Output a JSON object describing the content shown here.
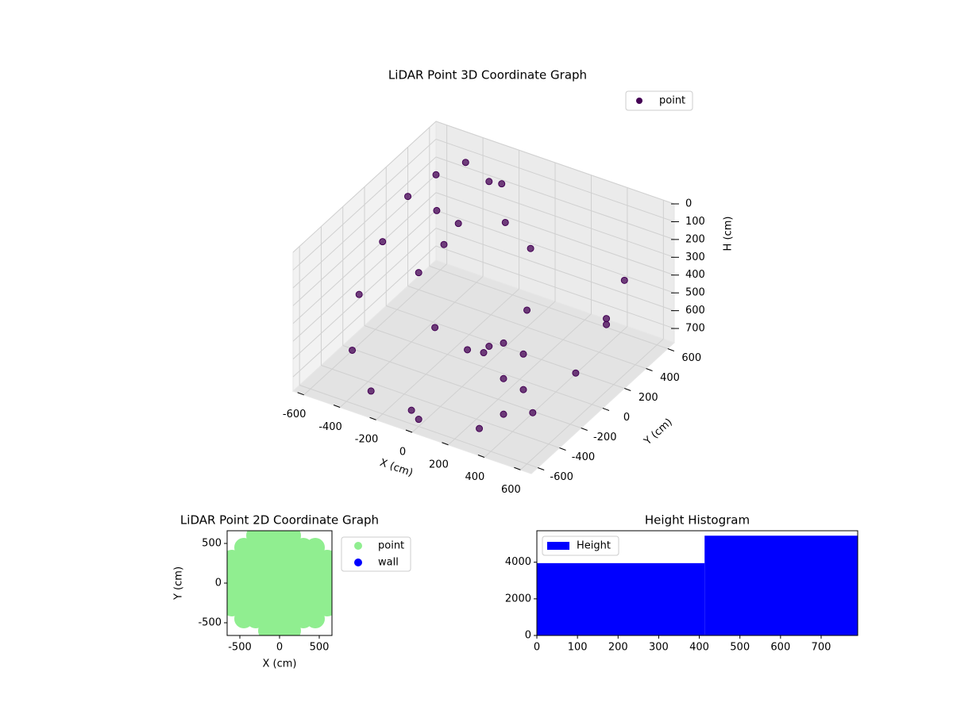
{
  "chart_data": [
    {
      "type": "scatter3d",
      "title": "LiDAR Point 3D Coordinate Graph",
      "xlabel": "X (cm)",
      "ylabel": "Y (cm)",
      "zlabel": "H (cm)",
      "xlim": [
        -660,
        660
      ],
      "ylim": [
        -660,
        660
      ],
      "zlim": [
        0,
        780
      ],
      "z_inverted": true,
      "xticks": [
        -600,
        -400,
        -200,
        0,
        200,
        400,
        600
      ],
      "yticks": [
        -600,
        -400,
        -200,
        0,
        200,
        400,
        600
      ],
      "zticks": [
        0,
        100,
        200,
        300,
        400,
        500,
        600,
        700
      ],
      "legend": "upper right",
      "series": [
        {
          "name": "point",
          "color": "#440154",
          "x": [
            -600,
            -620,
            -600,
            -500,
            -300,
            0,
            300,
            500,
            600,
            620,
            600,
            -200,
            0,
            200,
            -300,
            300,
            -150,
            150,
            0,
            0,
            350,
            350,
            350,
            400,
            400,
            -400,
            -300,
            -200,
            -500,
            -400,
            -660,
            500,
            -100
          ],
          "y": [
            300,
            100,
            -150,
            -380,
            -540,
            -600,
            -540,
            -380,
            -150,
            100,
            300,
            100,
            200,
            100,
            -100,
            -100,
            -200,
            -200,
            -150,
            0,
            -400,
            -400,
            -400,
            -300,
            -300,
            500,
            550,
            500,
            400,
            300,
            660,
            300,
            -500
          ],
          "z": [
            200,
            350,
            500,
            650,
            720,
            740,
            720,
            650,
            520,
            380,
            250,
            100,
            80,
            100,
            300,
            300,
            500,
            500,
            600,
            700,
            300,
            500,
            700,
            400,
            600,
            50,
            150,
            100,
            300,
            400,
            300,
            500,
            780
          ]
        }
      ]
    },
    {
      "type": "scatter",
      "title": "LiDAR Point 2D Coordinate Graph",
      "xlabel": "X (cm)",
      "ylabel": "Y (cm)",
      "xlim": [
        -660,
        660
      ],
      "ylim": [
        -660,
        660
      ],
      "xticks": [
        -500,
        0,
        500
      ],
      "yticks": [
        -500,
        0,
        500
      ],
      "legend": "outside right",
      "series": [
        {
          "name": "point",
          "color": "#90ee90",
          "x": [
            -300,
            -150,
            0,
            150,
            -450,
            -300,
            -150,
            0,
            150,
            300,
            450,
            -600,
            -450,
            -300,
            -150,
            0,
            150,
            300,
            450,
            600,
            -600,
            -450,
            -300,
            -150,
            0,
            150,
            300,
            450,
            600,
            -600,
            -450,
            -300,
            -150,
            0,
            150,
            300,
            450,
            600,
            -600,
            -450,
            -300,
            -150,
            0,
            150,
            300,
            450,
            600,
            -600,
            -450,
            -300,
            -150,
            0,
            150,
            300,
            450,
            600,
            -450,
            -300,
            -150,
            0,
            150,
            300,
            450,
            -150,
            0,
            150
          ],
          "y": [
            600,
            600,
            600,
            600,
            450,
            450,
            450,
            450,
            450,
            450,
            450,
            300,
            300,
            300,
            300,
            300,
            300,
            300,
            300,
            300,
            150,
            150,
            150,
            150,
            150,
            150,
            150,
            150,
            150,
            0,
            0,
            0,
            0,
            0,
            0,
            0,
            0,
            0,
            -150,
            -150,
            -150,
            -150,
            -150,
            -150,
            -150,
            -150,
            -150,
            -300,
            -300,
            -300,
            -300,
            -300,
            -300,
            -300,
            -300,
            -300,
            -450,
            -450,
            -450,
            -450,
            -450,
            -450,
            -450,
            -600,
            -600,
            -600
          ]
        },
        {
          "name": "wall",
          "color": "#0000ff",
          "x": [],
          "y": []
        }
      ]
    },
    {
      "type": "histogram",
      "title": "Height Histogram",
      "name": "Height",
      "color": "#0000ff",
      "bins": [
        0,
        413,
        790
      ],
      "values": [
        3950,
        5450
      ],
      "xlim": [
        0,
        790
      ],
      "ylim": [
        0,
        5720
      ],
      "xticks": [
        0,
        100,
        200,
        300,
        400,
        500,
        600,
        700
      ],
      "yticks": [
        0,
        2000,
        4000
      ],
      "legend": "upper left"
    }
  ]
}
